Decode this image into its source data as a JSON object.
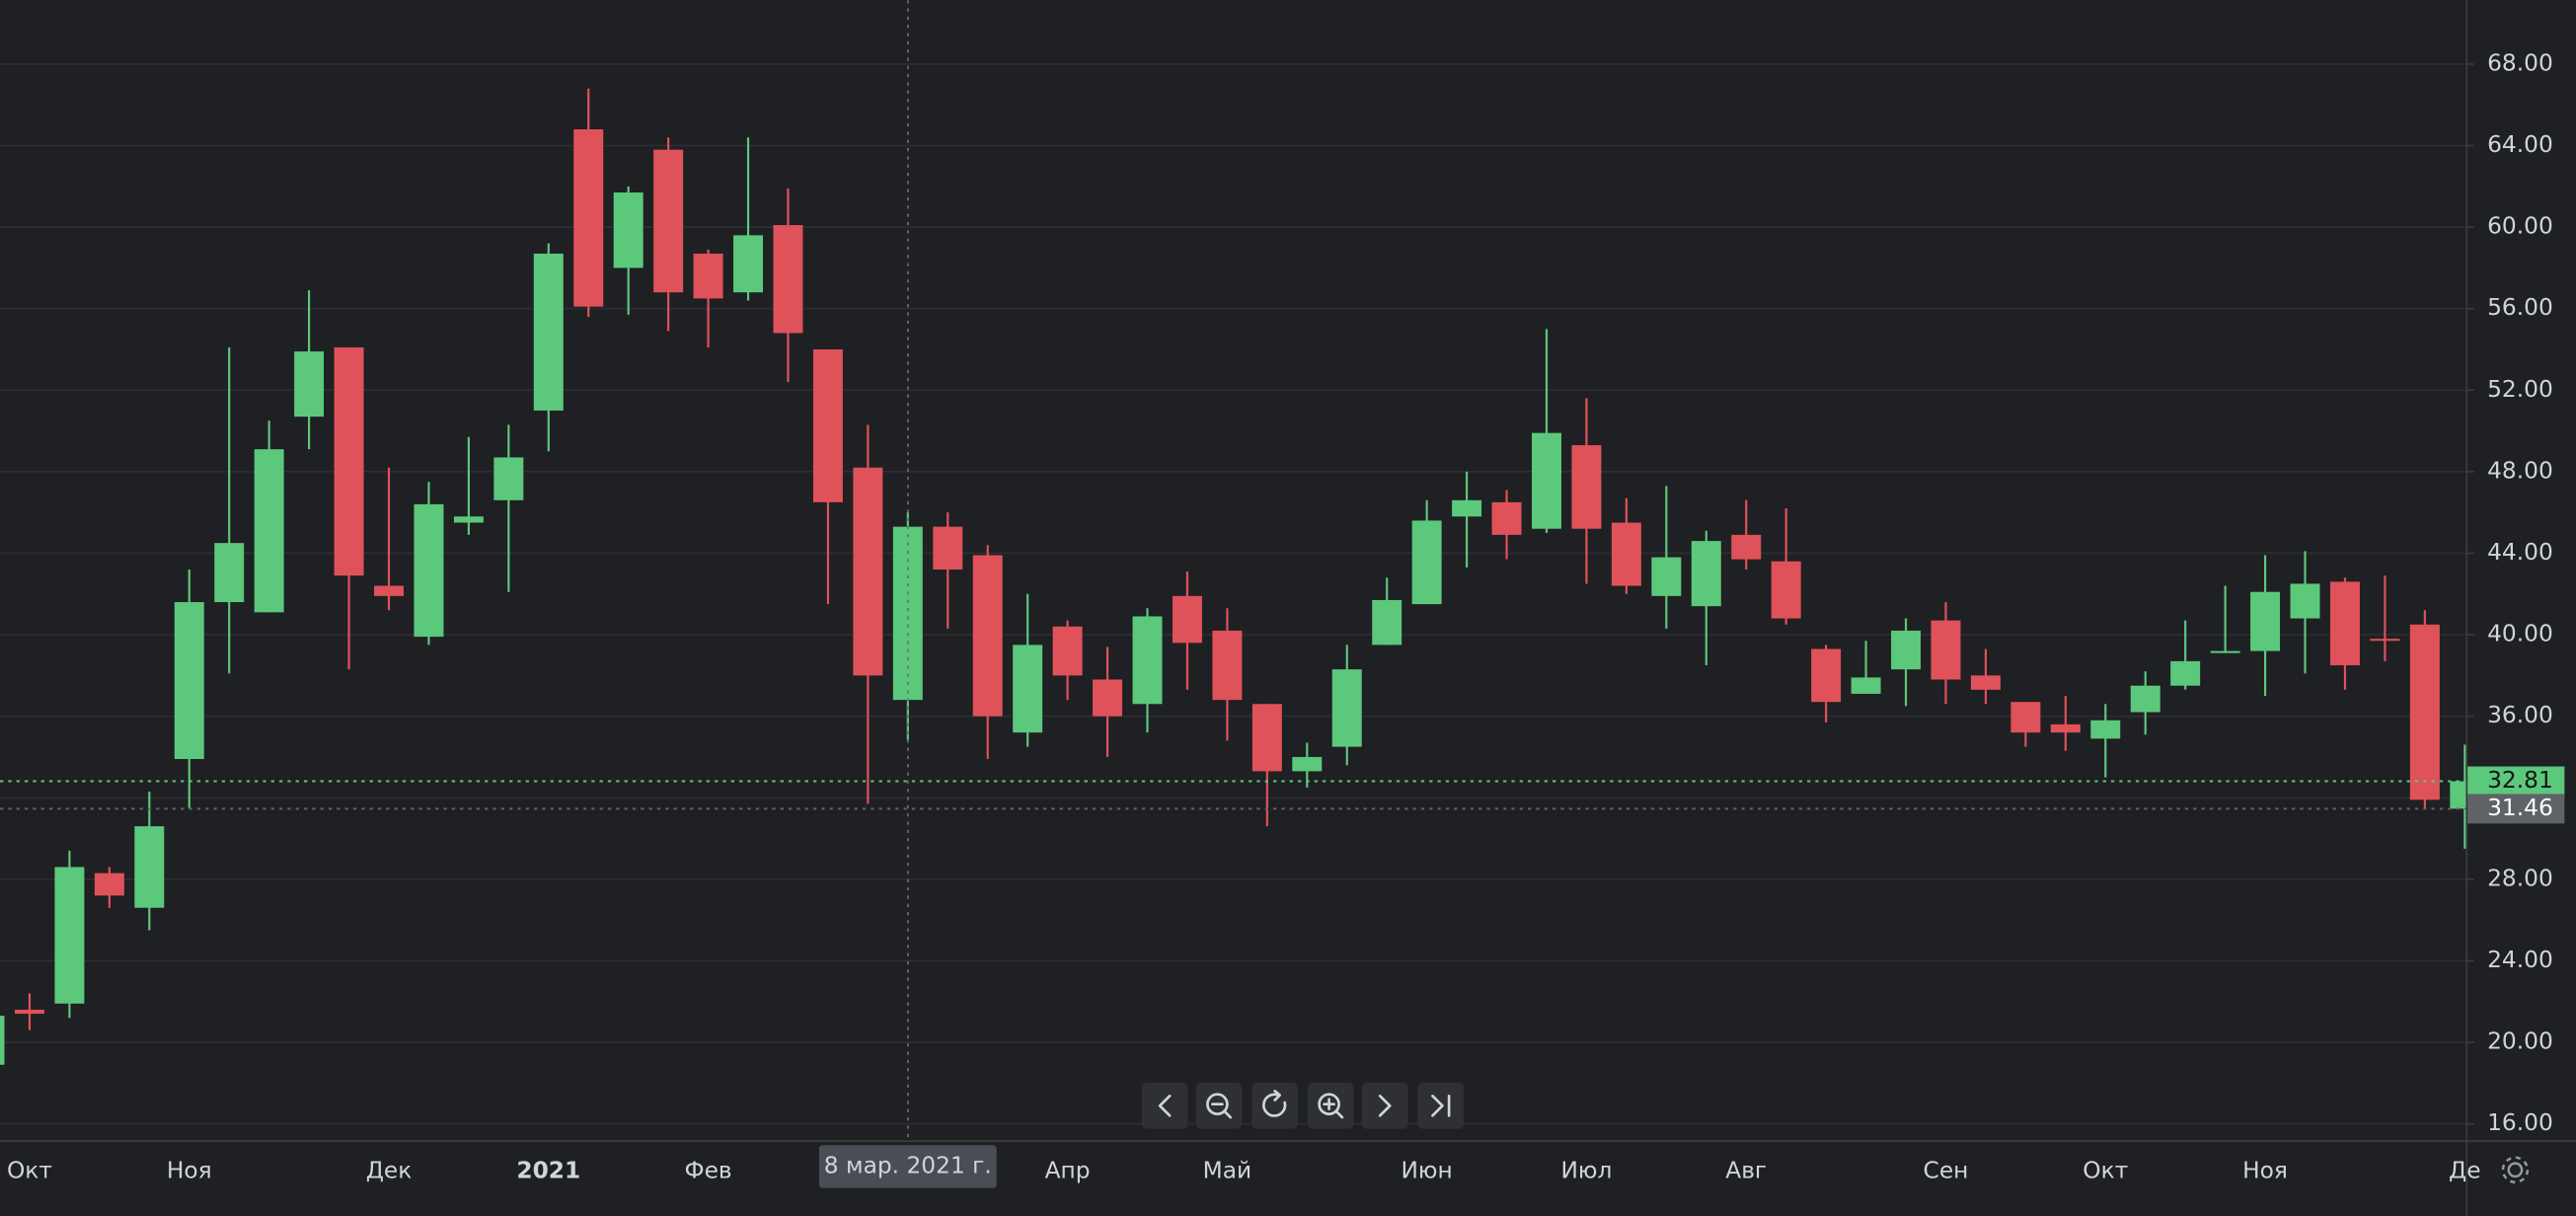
{
  "chart_data": {
    "type": "candlestick",
    "categories": [
      null,
      "Окт",
      null,
      null,
      null,
      "Ноя",
      null,
      null,
      null,
      null,
      "Дек",
      null,
      null,
      null,
      "2021",
      null,
      null,
      null,
      "Фев",
      null,
      null,
      null,
      null,
      null,
      null,
      null,
      null,
      "Апр",
      null,
      null,
      null,
      "Май",
      null,
      null,
      null,
      null,
      "Июн",
      null,
      null,
      null,
      "Июл",
      null,
      null,
      null,
      "Авг",
      null,
      null,
      null,
      null,
      "Сен",
      null,
      null,
      null,
      "Окт",
      null,
      null,
      null,
      "Ноя",
      null,
      null,
      null,
      null,
      "Де"
    ],
    "open": [
      18.9,
      21.6,
      21.9,
      28.3,
      26.6,
      33.9,
      41.6,
      41.1,
      50.7,
      54.1,
      42.4,
      39.9,
      45.5,
      46.6,
      51.0,
      64.8,
      58.0,
      63.8,
      58.7,
      56.8,
      60.1,
      54.0,
      48.2,
      36.8,
      45.3,
      43.9,
      35.2,
      40.4,
      37.8,
      36.6,
      41.9,
      40.2,
      36.6,
      33.3,
      34.5,
      39.5,
      41.5,
      45.8,
      46.5,
      45.2,
      49.3,
      45.5,
      41.9,
      41.4,
      44.9,
      43.6,
      39.3,
      37.1,
      38.3,
      40.7,
      38.0,
      36.7,
      35.6,
      34.9,
      36.2,
      37.5,
      39.1,
      39.2,
      40.8,
      42.6,
      39.8,
      40.5,
      31.46
    ],
    "high": [
      21.3,
      22.4,
      29.4,
      28.6,
      32.3,
      43.2,
      54.1,
      50.5,
      56.9,
      54.1,
      48.2,
      47.5,
      49.7,
      50.3,
      59.2,
      66.8,
      62.0,
      64.4,
      58.9,
      64.4,
      61.9,
      54.0,
      50.3,
      46.0,
      46.0,
      44.4,
      42.0,
      40.7,
      39.4,
      41.3,
      43.1,
      41.3,
      36.6,
      34.7,
      39.5,
      42.8,
      46.6,
      48.0,
      47.1,
      55.0,
      51.6,
      46.7,
      47.3,
      45.1,
      46.6,
      46.2,
      39.5,
      39.7,
      40.8,
      41.6,
      39.3,
      36.7,
      37.0,
      36.6,
      38.2,
      40.7,
      42.4,
      43.9,
      44.1,
      42.8,
      42.9,
      41.2,
      34.6
    ],
    "low": [
      18.9,
      20.6,
      21.2,
      26.6,
      25.5,
      31.5,
      38.1,
      41.1,
      49.1,
      38.3,
      41.2,
      39.5,
      44.9,
      42.1,
      49.0,
      55.6,
      55.7,
      54.9,
      54.1,
      56.4,
      52.4,
      41.5,
      31.7,
      34.8,
      40.3,
      33.9,
      34.5,
      36.8,
      34.0,
      35.2,
      37.3,
      34.8,
      30.6,
      32.5,
      33.6,
      39.5,
      41.5,
      43.3,
      43.7,
      45.0,
      42.5,
      42.0,
      40.3,
      38.5,
      43.2,
      40.5,
      35.7,
      37.1,
      36.5,
      36.6,
      36.6,
      34.5,
      34.3,
      33.0,
      35.1,
      37.3,
      39.1,
      37.0,
      38.1,
      37.3,
      38.7,
      31.5,
      29.5
    ],
    "close": [
      21.3,
      21.4,
      28.6,
      27.2,
      30.6,
      41.6,
      44.5,
      49.1,
      53.9,
      42.9,
      41.9,
      46.4,
      45.8,
      48.7,
      58.7,
      56.1,
      61.7,
      56.8,
      56.5,
      59.6,
      54.8,
      46.5,
      38.0,
      45.3,
      43.2,
      36.0,
      39.5,
      38.0,
      36.0,
      40.9,
      39.6,
      36.8,
      33.3,
      34.0,
      38.3,
      41.7,
      45.6,
      46.6,
      44.9,
      49.9,
      45.2,
      42.4,
      43.8,
      44.6,
      43.7,
      40.8,
      36.7,
      37.9,
      40.2,
      37.8,
      37.3,
      35.2,
      35.2,
      35.8,
      37.5,
      38.7,
      39.2,
      42.1,
      42.5,
      38.5,
      39.7,
      31.9,
      32.81
    ],
    "up_color": "#5cc87c",
    "down_color": "#e0525a",
    "ylim": [
      15.19,
      71.14
    ],
    "yticks": [
      {
        "value": 16,
        "label": "16.00"
      },
      {
        "value": 20,
        "label": "20.00"
      },
      {
        "value": 24,
        "label": "24.00"
      },
      {
        "value": 28,
        "label": "28.00"
      },
      {
        "value": 32,
        "label": "32.00"
      },
      {
        "value": 36,
        "label": "36.00"
      },
      {
        "value": 40,
        "label": "40.00"
      },
      {
        "value": 44,
        "label": "44.00"
      },
      {
        "value": 48,
        "label": "48.00"
      },
      {
        "value": 52,
        "label": "52.00"
      },
      {
        "value": 56,
        "label": "56.00"
      },
      {
        "value": 60,
        "label": "60.00"
      },
      {
        "value": 64,
        "label": "64.00"
      },
      {
        "value": 68,
        "label": "68.00"
      }
    ],
    "grid": true,
    "price_lines": [
      {
        "value": 32.81,
        "color": "#5cc87c"
      },
      {
        "value": 31.46,
        "color": "#5f6368"
      }
    ],
    "crosshair_label": "8 мар. 2021 г."
  }
}
